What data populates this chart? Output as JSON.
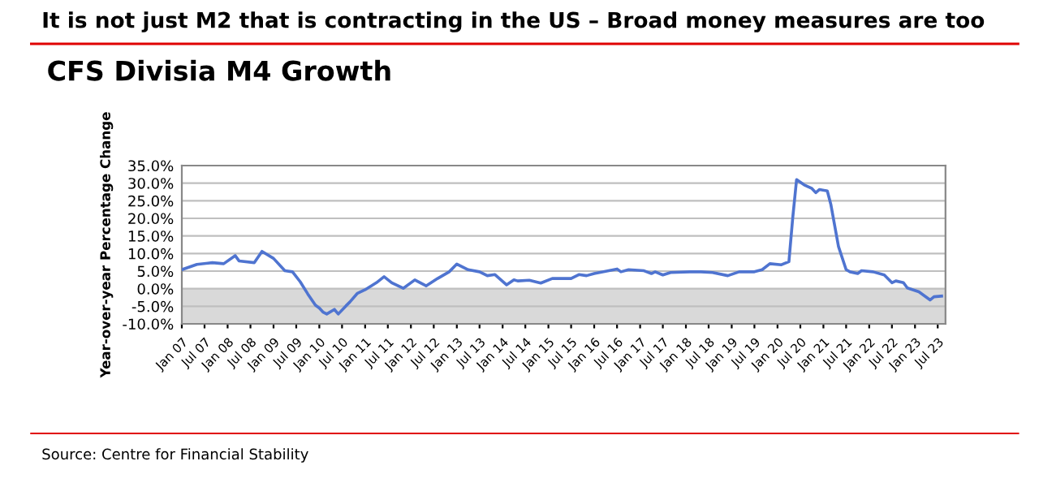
{
  "chart_data": {
    "type": "line",
    "title": "It is not just M2 that is contracting in the US – Broad money measures are too",
    "subtitle": "CFS Divisia M4 Growth",
    "ylabel": "Year-over-year Percentage Change",
    "annotations": [
      "Source: Centre for Financial Stability"
    ],
    "series": [
      {
        "color": "#4f74d0",
        "x": [
          "2007-01",
          "2007-05",
          "2007-09",
          "2007-12",
          "2008-03",
          "2008-04",
          "2008-08",
          "2008-10",
          "2009-01",
          "2009-04",
          "2009-06",
          "2009-08",
          "2009-10",
          "2009-12",
          "2010-01",
          "2010-02",
          "2010-03",
          "2010-05",
          "2010-06",
          "2010-08",
          "2010-09",
          "2010-11",
          "2011-01",
          "2011-04",
          "2011-06",
          "2011-08",
          "2011-11",
          "2012-02",
          "2012-05",
          "2012-08",
          "2012-11",
          "2013-01",
          "2013-04",
          "2013-07",
          "2013-09",
          "2013-11",
          "2014-02",
          "2014-04",
          "2014-05",
          "2014-08",
          "2014-11",
          "2015-02",
          "2015-07",
          "2015-09",
          "2015-11",
          "2016-01",
          "2016-07",
          "2016-08",
          "2016-10",
          "2017-02",
          "2017-04",
          "2017-05",
          "2017-07",
          "2017-09",
          "2018-02",
          "2018-05",
          "2018-08",
          "2018-12",
          "2019-03",
          "2019-07",
          "2019-09",
          "2019-11",
          "2020-02",
          "2020-04",
          "2020-05",
          "2020-06",
          "2020-08",
          "2020-10",
          "2020-11",
          "2020-12",
          "2021-02",
          "2021-03",
          "2021-05",
          "2021-07",
          "2021-08",
          "2021-10",
          "2021-11",
          "2022-02",
          "2022-05",
          "2022-07",
          "2022-08",
          "2022-10",
          "2022-11",
          "2023-02",
          "2023-05",
          "2023-06",
          "2023-08"
        ],
        "values": [
          5.4,
          6.9,
          7.4,
          7.1,
          9.4,
          7.9,
          7.4,
          10.6,
          8.6,
          5.1,
          4.8,
          2.0,
          -1.5,
          -4.7,
          -5.5,
          -6.7,
          -7.2,
          -5.9,
          -7.2,
          -4.9,
          -3.8,
          -1.3,
          -0.3,
          1.7,
          3.4,
          1.7,
          0.1,
          2.5,
          0.8,
          2.9,
          4.8,
          7.0,
          5.4,
          4.8,
          3.7,
          4.0,
          1.1,
          2.5,
          2.2,
          2.4,
          1.6,
          2.9,
          2.9,
          4.0,
          3.7,
          4.3,
          5.6,
          4.8,
          5.4,
          5.1,
          4.3,
          4.8,
          3.9,
          4.6,
          4.8,
          4.8,
          4.6,
          3.7,
          4.8,
          4.8,
          5.4,
          7.1,
          6.8,
          7.7,
          20,
          31,
          29.5,
          28.5,
          27.3,
          28.2,
          27.8,
          24,
          12,
          5.4,
          4.8,
          4.3,
          5.1,
          4.8,
          3.9,
          1.7,
          2.2,
          1.7,
          0.2,
          -0.9,
          -3.2,
          -2.3,
          -2.1
        ]
      }
    ],
    "xlim": [
      "2007-01",
      "2023-09"
    ],
    "xticks": [
      {
        "value": "2007-01",
        "label": "Jan 07"
      },
      {
        "value": "2007-07",
        "label": "Jul 07"
      },
      {
        "value": "2008-01",
        "label": "Jan 08"
      },
      {
        "value": "2008-07",
        "label": "Jul 08"
      },
      {
        "value": "2009-01",
        "label": "Jan 09"
      },
      {
        "value": "2009-07",
        "label": "Jul 09"
      },
      {
        "value": "2010-01",
        "label": "Jan 10"
      },
      {
        "value": "2010-07",
        "label": "Jul 10"
      },
      {
        "value": "2011-01",
        "label": "Jan 11"
      },
      {
        "value": "2011-07",
        "label": "Jul 11"
      },
      {
        "value": "2012-01",
        "label": "Jan 12"
      },
      {
        "value": "2012-07",
        "label": "Jul 12"
      },
      {
        "value": "2013-01",
        "label": "Jan 13"
      },
      {
        "value": "2013-07",
        "label": "Jul 13"
      },
      {
        "value": "2014-01",
        "label": "Jan 14"
      },
      {
        "value": "2014-07",
        "label": "Jul 14"
      },
      {
        "value": "2015-01",
        "label": "Jan 15"
      },
      {
        "value": "2015-07",
        "label": "Jul 15"
      },
      {
        "value": "2016-01",
        "label": "Jan 16"
      },
      {
        "value": "2016-07",
        "label": "Jul 16"
      },
      {
        "value": "2017-01",
        "label": "Jan 17"
      },
      {
        "value": "2017-07",
        "label": "Jul 17"
      },
      {
        "value": "2018-01",
        "label": "Jan 18"
      },
      {
        "value": "2018-07",
        "label": "Jul 18"
      },
      {
        "value": "2019-01",
        "label": "Jan 19"
      },
      {
        "value": "2019-07",
        "label": "Jul 19"
      },
      {
        "value": "2020-01",
        "label": "Jan 20"
      },
      {
        "value": "2020-07",
        "label": "Jul 20"
      },
      {
        "value": "2021-01",
        "label": "Jan 21"
      },
      {
        "value": "2021-07",
        "label": "Jul 21"
      },
      {
        "value": "2022-01",
        "label": "Jan 22"
      },
      {
        "value": "2022-07",
        "label": "Jul 22"
      },
      {
        "value": "2023-01",
        "label": "Jan 23"
      },
      {
        "value": "2023-07",
        "label": "Jul 23"
      }
    ],
    "ylim": [
      -10,
      35
    ],
    "yticks": [
      {
        "value": -10,
        "label": "-10.0%"
      },
      {
        "value": -5,
        "label": "-5.0%"
      },
      {
        "value": 0,
        "label": "0.0%"
      },
      {
        "value": 5,
        "label": "5.0%"
      },
      {
        "value": 10,
        "label": "10.0%"
      },
      {
        "value": 15,
        "label": "15.0%"
      },
      {
        "value": 20,
        "label": "20.0%"
      },
      {
        "value": 25,
        "label": "25.0%"
      },
      {
        "value": 30,
        "label": "30.0%"
      },
      {
        "value": 35,
        "label": "35.0%"
      }
    ],
    "bands": [
      {
        "axis": "y",
        "from": -10,
        "to": 0,
        "color": "#d9d9d9"
      }
    ],
    "grid": "y",
    "marker": "none",
    "line_style": "solid"
  }
}
